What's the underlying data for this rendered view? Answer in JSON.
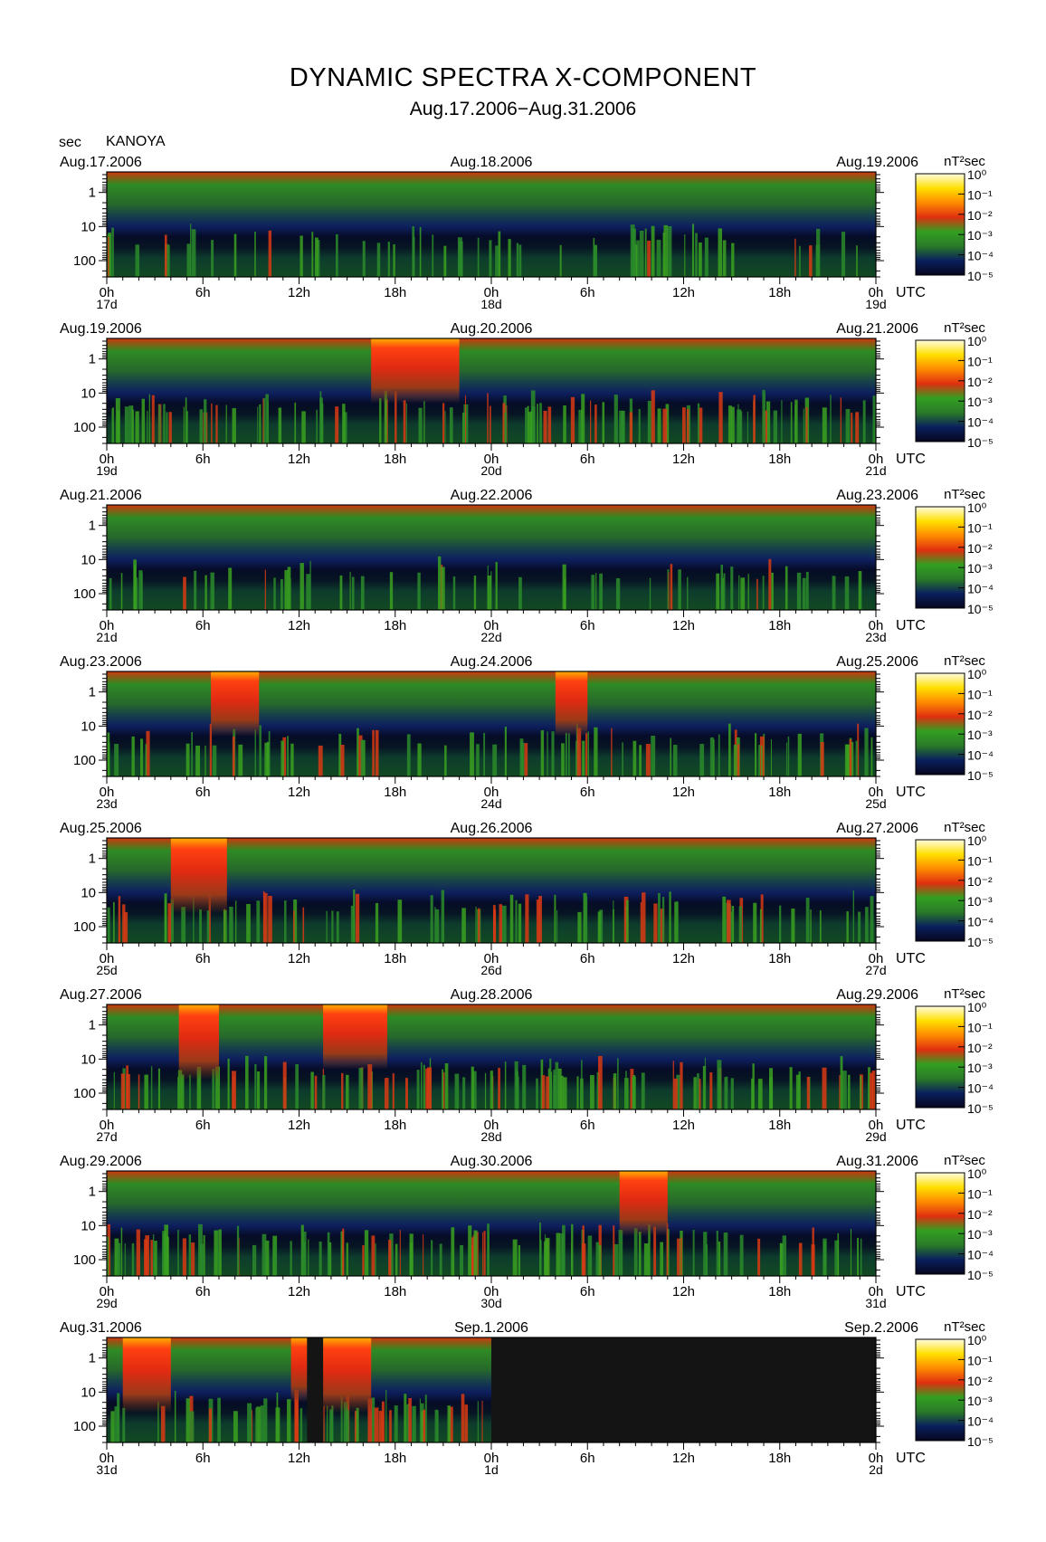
{
  "header": {
    "title": "DYNAMIC SPECTRA X-COMPONENT",
    "subtitle": "Aug.17.2006−Aug.31.2006",
    "unit_label": "sec",
    "station": "KANOYA"
  },
  "chart_data": {
    "type": "heatmap",
    "y_axis": {
      "label": "sec",
      "scale": "log",
      "range": [
        0.25,
        300
      ],
      "ticks": [
        "1",
        "10",
        "100"
      ],
      "inverted": true
    },
    "x_axis": {
      "label": "UTC",
      "ticks": [
        "0h",
        "6h",
        "12h",
        "18h",
        "0h",
        "6h",
        "12h",
        "18h",
        "0h"
      ]
    },
    "colorbar": {
      "unit": "nT²sec",
      "scale": "log",
      "range": [
        1e-05,
        1
      ],
      "ticks": [
        "10⁰",
        "10⁻¹",
        "10⁻²",
        "10⁻³",
        "10⁻⁴",
        "10⁻⁵"
      ],
      "colors": [
        "#06061e",
        "#0a1f5e",
        "#2a7a28",
        "#32a020",
        "#e03010",
        "#ff8a00",
        "#ffe000",
        "#fffde0"
      ]
    },
    "panels": [
      {
        "date_left": "Aug.17.2006",
        "date_mid": "Aug.18.2006",
        "date_right": "Aug.19.2006",
        "day_labels": [
          "17d",
          "18d",
          "19d"
        ],
        "intensity": "quiet",
        "events": []
      },
      {
        "date_left": "Aug.19.2006",
        "date_mid": "Aug.20.2006",
        "date_right": "Aug.21.2006",
        "day_labels": [
          "19d",
          "20d",
          "21d"
        ],
        "intensity": "active",
        "events": [
          {
            "start_hour": 16.5,
            "end_hour": 22,
            "peak_power": 0.01
          }
        ]
      },
      {
        "date_left": "Aug.21.2006",
        "date_mid": "Aug.22.2006",
        "date_right": "Aug.23.2006",
        "day_labels": [
          "21d",
          "22d",
          "23d"
        ],
        "intensity": "quiet",
        "events": []
      },
      {
        "date_left": "Aug.23.2006",
        "date_mid": "Aug.24.2006",
        "date_right": "Aug.25.2006",
        "day_labels": [
          "23d",
          "24d",
          "25d"
        ],
        "intensity": "moderate",
        "events": [
          {
            "start_hour": 6.5,
            "end_hour": 9.5,
            "peak_power": 0.01
          },
          {
            "start_hour": 28,
            "end_hour": 30,
            "peak_power": 0.01
          }
        ]
      },
      {
        "date_left": "Aug.25.2006",
        "date_mid": "Aug.26.2006",
        "date_right": "Aug.27.2006",
        "day_labels": [
          "25d",
          "26d",
          "27d"
        ],
        "intensity": "moderate",
        "events": [
          {
            "start_hour": 4,
            "end_hour": 7.5,
            "peak_power": 0.1
          }
        ]
      },
      {
        "date_left": "Aug.27.2006",
        "date_mid": "Aug.28.2006",
        "date_right": "Aug.29.2006",
        "day_labels": [
          "27d",
          "28d",
          "29d"
        ],
        "intensity": "active",
        "events": [
          {
            "start_hour": 4.5,
            "end_hour": 7,
            "peak_power": 0.1
          },
          {
            "start_hour": 13.5,
            "end_hour": 17.5,
            "peak_power": 0.01
          }
        ]
      },
      {
        "date_left": "Aug.29.2006",
        "date_mid": "Aug.30.2006",
        "date_right": "Aug.31.2006",
        "day_labels": [
          "29d",
          "30d",
          "31d"
        ],
        "intensity": "active",
        "events": [
          {
            "start_hour": 32,
            "end_hour": 35,
            "peak_power": 0.01
          }
        ]
      },
      {
        "date_left": "Aug.31.2006",
        "date_mid": "Sep.1.2006",
        "date_right": "Sep.2.2006",
        "day_labels": [
          "31d",
          "1d",
          "2d"
        ],
        "intensity": "active",
        "events": [
          {
            "start_hour": 1,
            "end_hour": 4,
            "peak_power": 0.1
          },
          {
            "start_hour": 11.5,
            "end_hour": 12.5,
            "peak_power": 0.01
          },
          {
            "start_hour": 13.5,
            "end_hour": 16.5,
            "peak_power": 0.1
          }
        ],
        "data_gaps": [
          [
            12.5,
            13.5
          ],
          [
            24,
            48
          ]
        ]
      }
    ]
  }
}
